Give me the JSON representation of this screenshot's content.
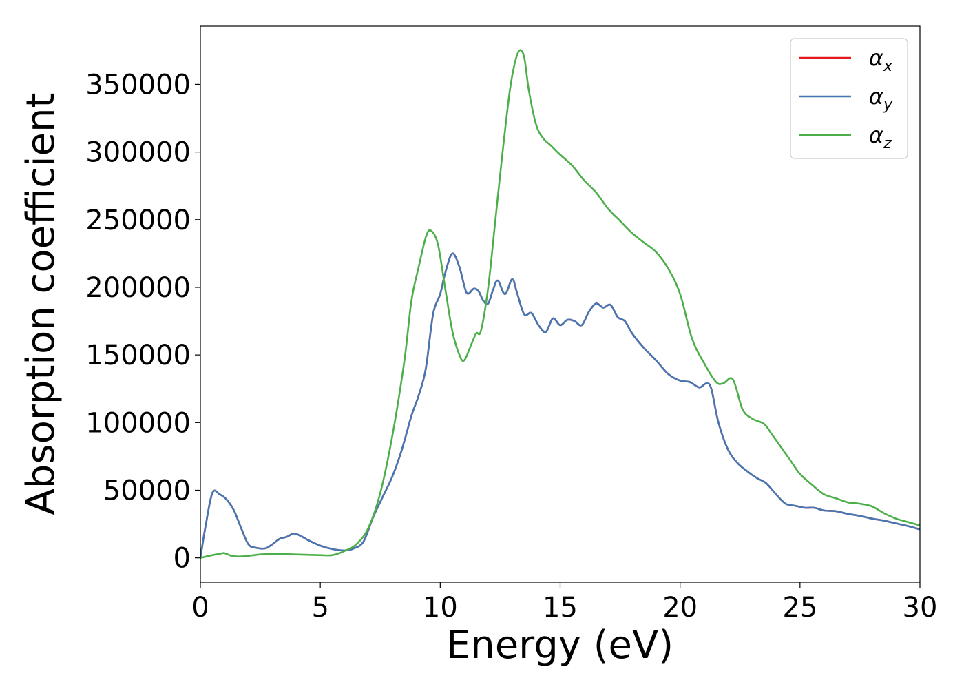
{
  "chart_data": {
    "type": "line",
    "xlabel": "Energy (eV)",
    "ylabel": "Absorption coefficient",
    "xlim": [
      0,
      30
    ],
    "ylim": [
      -18000,
      393000
    ],
    "xticks": [
      0,
      5,
      10,
      15,
      20,
      25,
      30
    ],
    "yticks": [
      0,
      50000,
      100000,
      150000,
      200000,
      250000,
      300000,
      350000
    ],
    "grid": false,
    "legend_placement": "top-right",
    "series": [
      {
        "name": "α",
        "subscript": "x",
        "color": "#e41a1c",
        "x": [
          0,
          0.2,
          0.5,
          0.8,
          1.1,
          1.4,
          1.7,
          2.0,
          2.3,
          2.7,
          3.0,
          3.3,
          3.6,
          3.9,
          4.2,
          4.5,
          5.0,
          5.5,
          6.0,
          6.4,
          6.8,
          7.2,
          7.6,
          8.0,
          8.4,
          8.8,
          9.1,
          9.4,
          9.7,
          10.0,
          10.2,
          10.5,
          10.8,
          11.1,
          11.4,
          11.6,
          11.8,
          12.0,
          12.2,
          12.4,
          12.7,
          13.0,
          13.2,
          13.5,
          13.8,
          14.1,
          14.4,
          14.7,
          15.0,
          15.3,
          15.6,
          15.9,
          16.2,
          16.5,
          16.8,
          17.1,
          17.4,
          17.7,
          18.0,
          18.5,
          19.0,
          19.5,
          20.0,
          20.4,
          20.8,
          21.1,
          21.3,
          21.6,
          22.0,
          22.4,
          22.8,
          23.2,
          23.6,
          24.0,
          24.4,
          24.8,
          25.2,
          25.6,
          26.0,
          26.5,
          27.0,
          27.5,
          28.0,
          28.5,
          29.0,
          29.5,
          30.0
        ],
        "values": [
          0,
          22000,
          48000,
          47000,
          43000,
          35000,
          22000,
          10000,
          7500,
          7000,
          10000,
          14000,
          15500,
          18000,
          16000,
          13000,
          9000,
          6500,
          5500,
          7000,
          12000,
          30000,
          45000,
          60000,
          80000,
          105000,
          120000,
          140000,
          180000,
          195000,
          210000,
          225000,
          215000,
          196000,
          199000,
          197000,
          190000,
          188000,
          198000,
          205000,
          195000,
          206000,
          196000,
          180000,
          181000,
          172000,
          167000,
          177000,
          172000,
          176000,
          175000,
          172000,
          182000,
          188000,
          185000,
          187000,
          178000,
          175000,
          166000,
          155000,
          146000,
          136000,
          131000,
          130000,
          126000,
          129000,
          125000,
          100000,
          80000,
          70000,
          64000,
          59000,
          55000,
          47000,
          40000,
          38500,
          37000,
          37000,
          35000,
          34500,
          32500,
          31000,
          29000,
          27500,
          25500,
          23500,
          21000
        ]
      },
      {
        "name": "α",
        "subscript": "y",
        "color": "#4477b3",
        "x": [
          0,
          0.2,
          0.5,
          0.8,
          1.1,
          1.4,
          1.7,
          2.0,
          2.3,
          2.7,
          3.0,
          3.3,
          3.6,
          3.9,
          4.2,
          4.5,
          5.0,
          5.5,
          6.0,
          6.4,
          6.8,
          7.2,
          7.6,
          8.0,
          8.4,
          8.8,
          9.1,
          9.4,
          9.7,
          10.0,
          10.2,
          10.5,
          10.8,
          11.1,
          11.4,
          11.6,
          11.8,
          12.0,
          12.2,
          12.4,
          12.7,
          13.0,
          13.2,
          13.5,
          13.8,
          14.1,
          14.4,
          14.7,
          15.0,
          15.3,
          15.6,
          15.9,
          16.2,
          16.5,
          16.8,
          17.1,
          17.4,
          17.7,
          18.0,
          18.5,
          19.0,
          19.5,
          20.0,
          20.4,
          20.8,
          21.1,
          21.3,
          21.6,
          22.0,
          22.4,
          22.8,
          23.2,
          23.6,
          24.0,
          24.4,
          24.8,
          25.2,
          25.6,
          26.0,
          26.5,
          27.0,
          27.5,
          28.0,
          28.5,
          29.0,
          29.5,
          30.0
        ],
        "values": [
          0,
          22000,
          48000,
          47000,
          43000,
          35000,
          22000,
          10000,
          7500,
          7000,
          10000,
          14000,
          15500,
          18000,
          16000,
          13000,
          9000,
          6500,
          5500,
          7000,
          12000,
          30000,
          45000,
          60000,
          80000,
          105000,
          120000,
          140000,
          180000,
          195000,
          210000,
          225000,
          215000,
          196000,
          199000,
          197000,
          190000,
          188000,
          198000,
          205000,
          195000,
          206000,
          196000,
          180000,
          181000,
          172000,
          167000,
          177000,
          172000,
          176000,
          175000,
          172000,
          182000,
          188000,
          185000,
          187000,
          178000,
          175000,
          166000,
          155000,
          146000,
          136000,
          131000,
          130000,
          126000,
          129000,
          125000,
          100000,
          80000,
          70000,
          64000,
          59000,
          55000,
          47000,
          40000,
          38500,
          37000,
          37000,
          35000,
          34500,
          32500,
          31000,
          29000,
          27500,
          25500,
          23500,
          21000
        ]
      },
      {
        "name": "α",
        "subscript": "z",
        "color": "#4daf4a",
        "x": [
          0,
          0.5,
          0.8,
          1.0,
          1.3,
          1.6,
          2.0,
          2.5,
          3.0,
          4.0,
          5.0,
          5.5,
          6.0,
          6.5,
          7.0,
          7.5,
          8.0,
          8.5,
          8.8,
          9.1,
          9.4,
          9.6,
          9.9,
          10.2,
          10.5,
          10.8,
          11.0,
          11.3,
          11.5,
          11.7,
          12.0,
          12.3,
          12.6,
          12.9,
          13.1,
          13.3,
          13.5,
          13.7,
          14.0,
          14.3,
          14.6,
          15.0,
          15.5,
          16.0,
          16.5,
          17.0,
          17.5,
          18.0,
          18.5,
          19.0,
          19.5,
          20.0,
          20.5,
          21.0,
          21.5,
          21.8,
          22.2,
          22.6,
          23.0,
          23.5,
          23.8,
          24.2,
          24.6,
          25.0,
          25.5,
          26.0,
          26.5,
          27.0,
          27.5,
          28.0,
          28.5,
          29.0,
          29.5,
          30.0
        ],
        "values": [
          0,
          2000,
          3000,
          3500,
          1500,
          1000,
          1500,
          2500,
          3000,
          2500,
          2000,
          2000,
          5000,
          10000,
          22000,
          48000,
          90000,
          145000,
          190000,
          215000,
          237000,
          242000,
          232000,
          200000,
          168000,
          150000,
          146000,
          158000,
          166000,
          168000,
          200000,
          250000,
          300000,
          345000,
          365000,
          375000,
          370000,
          345000,
          320000,
          310000,
          305000,
          298000,
          290000,
          279000,
          270000,
          258000,
          249000,
          240000,
          233000,
          226000,
          214000,
          195000,
          162000,
          144000,
          130000,
          129000,
          132000,
          110000,
          103000,
          99000,
          92000,
          82000,
          72000,
          62000,
          54000,
          47000,
          44000,
          41000,
          40000,
          38000,
          33000,
          29000,
          26500,
          24000
        ]
      }
    ]
  }
}
